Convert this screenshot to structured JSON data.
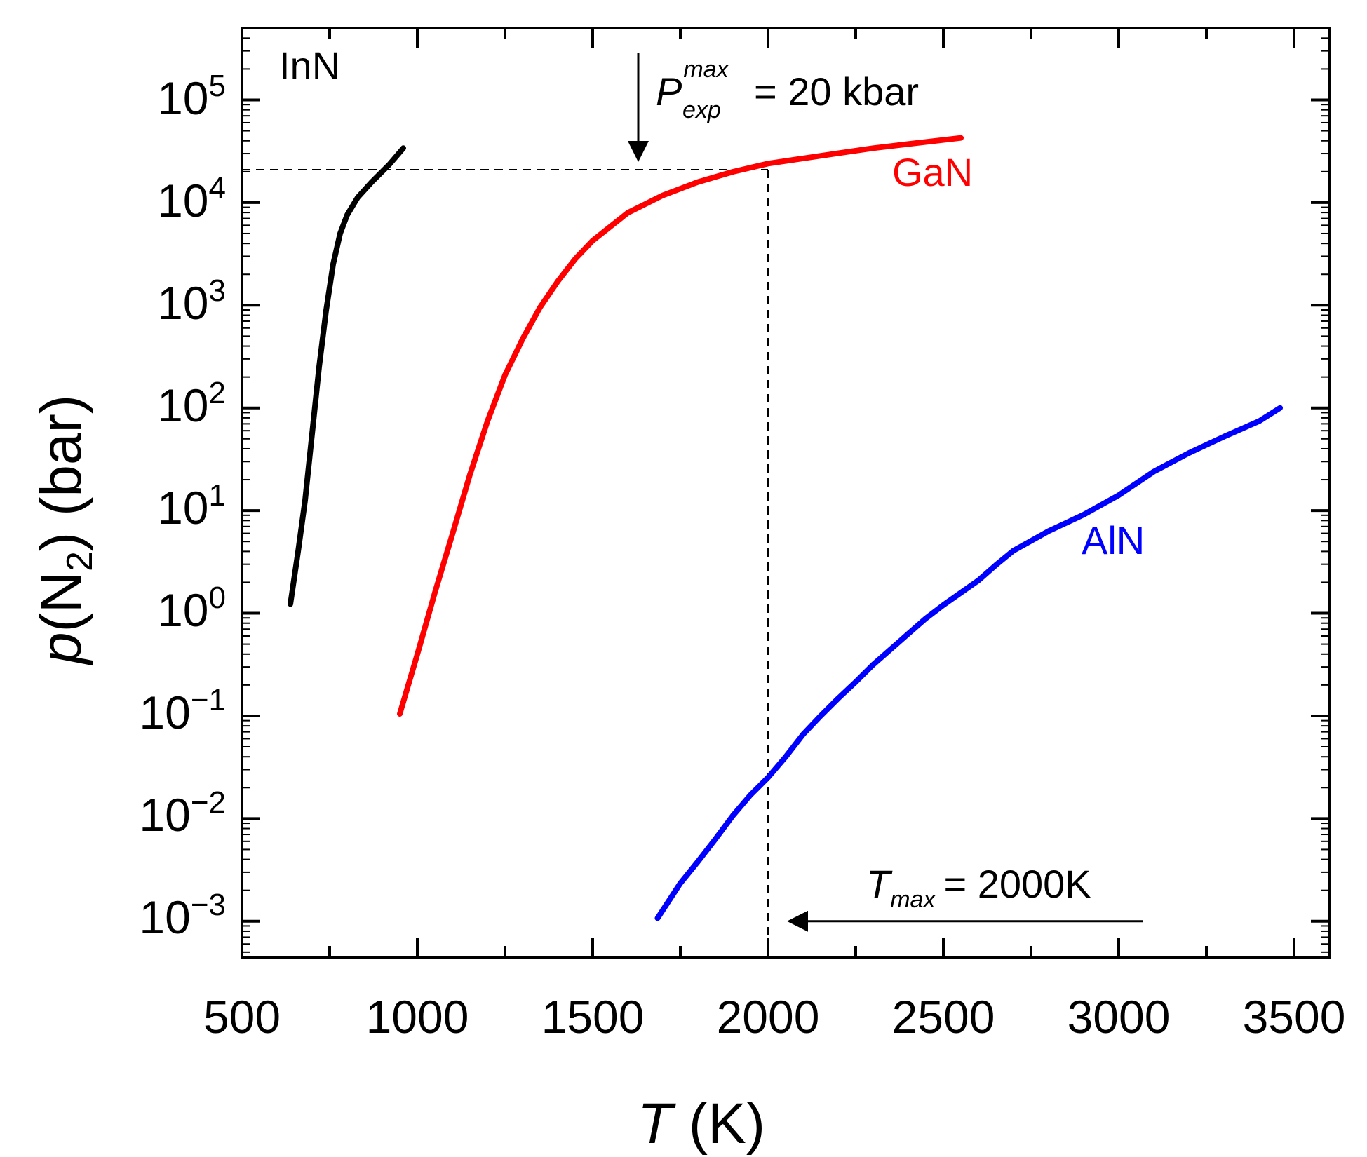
{
  "chart_data": {
    "type": "line",
    "xlabel": {
      "italic": "T",
      "rest": " (K)"
    },
    "ylabel": {
      "italic": "p",
      "rest_open": "(N",
      "sub": "2",
      "rest_close": ") (bar)"
    },
    "x_scale": "linear",
    "y_scale": "log",
    "xlim": [
      500,
      3600
    ],
    "ylim": [
      -3.35,
      5.7
    ],
    "x_ticks": [
      500,
      1000,
      1500,
      2000,
      2500,
      3000,
      3500
    ],
    "x_tick_labels": [
      "500",
      "1000",
      "1500",
      "2000",
      "2500",
      "3000",
      "3500"
    ],
    "y_ticks": [
      -3,
      -2,
      -1,
      0,
      1,
      2,
      3,
      4,
      5
    ],
    "y_tick_labels": [
      {
        "base": "10",
        "exp": "−3"
      },
      {
        "base": "10",
        "exp": "−2"
      },
      {
        "base": "10",
        "exp": "−1"
      },
      {
        "base": "10",
        "exp": "0"
      },
      {
        "base": "10",
        "exp": "1"
      },
      {
        "base": "10",
        "exp": "2"
      },
      {
        "base": "10",
        "exp": "3"
      },
      {
        "base": "10",
        "exp": "4"
      },
      {
        "base": "10",
        "exp": "5"
      }
    ],
    "grid": false,
    "series": [
      {
        "name": "InN",
        "color": "#000000",
        "label_position": "top-left",
        "points": [
          [
            638,
            0.09
          ],
          [
            660,
            0.6
          ],
          [
            680,
            1.1
          ],
          [
            700,
            1.75
          ],
          [
            720,
            2.4
          ],
          [
            740,
            2.95
          ],
          [
            760,
            3.4
          ],
          [
            780,
            3.7
          ],
          [
            800,
            3.88
          ],
          [
            830,
            4.05
          ],
          [
            870,
            4.2
          ],
          [
            920,
            4.37
          ],
          [
            960,
            4.53
          ]
        ]
      },
      {
        "name": "GaN",
        "color": "#ff0000",
        "label_position": "upper-right",
        "points": [
          [
            950,
            -0.98
          ],
          [
            1000,
            -0.4
          ],
          [
            1050,
            0.2
          ],
          [
            1100,
            0.77
          ],
          [
            1150,
            1.35
          ],
          [
            1200,
            1.87
          ],
          [
            1250,
            2.32
          ],
          [
            1300,
            2.67
          ],
          [
            1350,
            2.98
          ],
          [
            1400,
            3.23
          ],
          [
            1450,
            3.45
          ],
          [
            1500,
            3.63
          ],
          [
            1600,
            3.9
          ],
          [
            1700,
            4.07
          ],
          [
            1800,
            4.2
          ],
          [
            1900,
            4.3
          ],
          [
            2000,
            4.38
          ],
          [
            2100,
            4.43
          ],
          [
            2200,
            4.48
          ],
          [
            2300,
            4.53
          ],
          [
            2400,
            4.57
          ],
          [
            2550,
            4.63
          ]
        ]
      },
      {
        "name": "AlN",
        "color": "#0000ff",
        "label_position": "right",
        "points": [
          [
            1685,
            -2.97
          ],
          [
            1750,
            -2.63
          ],
          [
            1800,
            -2.42
          ],
          [
            1850,
            -2.2
          ],
          [
            1900,
            -1.97
          ],
          [
            1950,
            -1.77
          ],
          [
            2000,
            -1.6
          ],
          [
            2050,
            -1.4
          ],
          [
            2100,
            -1.18
          ],
          [
            2150,
            -1.0
          ],
          [
            2200,
            -0.83
          ],
          [
            2250,
            -0.67
          ],
          [
            2300,
            -0.5
          ],
          [
            2350,
            -0.35
          ],
          [
            2400,
            -0.2
          ],
          [
            2450,
            -0.05
          ],
          [
            2500,
            0.08
          ],
          [
            2550,
            0.2
          ],
          [
            2600,
            0.32
          ],
          [
            2650,
            0.47
          ],
          [
            2700,
            0.61
          ],
          [
            2800,
            0.8
          ],
          [
            2900,
            0.96
          ],
          [
            3000,
            1.15
          ],
          [
            3100,
            1.38
          ],
          [
            3200,
            1.56
          ],
          [
            3300,
            1.72
          ],
          [
            3400,
            1.87
          ],
          [
            3460,
            2.0
          ]
        ]
      }
    ],
    "reference_lines": {
      "pressure_log": 4.32,
      "temperature": 2000
    },
    "annotations": {
      "pressure": {
        "symbol": "P",
        "superscript": "max",
        "subscript": "exp",
        "text": "= 20 kbar",
        "arrow_x": 1630
      },
      "temperature": {
        "symbol": "T",
        "subscript": "max",
        "text": "= 2000K",
        "arrow_from_x": 3070,
        "arrow_to_x": 2060,
        "arrow_y_log": -3.0
      }
    }
  }
}
